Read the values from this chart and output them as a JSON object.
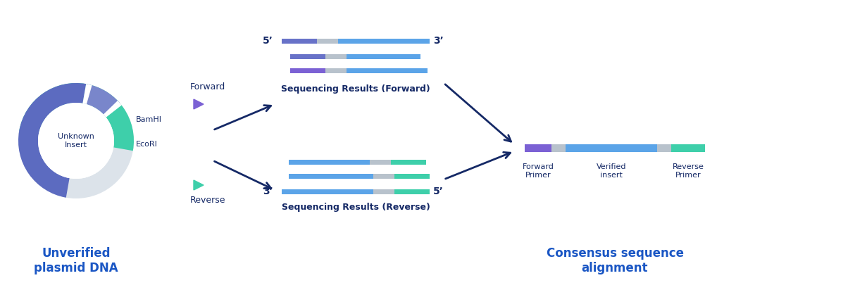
{
  "bg_color": "#ffffff",
  "dark_navy": "#152966",
  "mid_blue": "#6872c8",
  "light_blue": "#5ba4e8",
  "purple": "#7b61d4",
  "gray": "#b8c2cc",
  "teal": "#3ecfaa",
  "ring_outer_dark_blue": "#5c6bc0",
  "ring_outer_purple": "#7986cb",
  "ring_teal": "#3ecfaa",
  "ring_gray": "#dce3ea",
  "ring_white_gap": "#ffffff",
  "title_color": "#1a56c4",
  "label_color": "#152966",
  "five_prime": "5’",
  "three_prime": "3’",
  "forward_label": "Forward",
  "reverse_label": "Reverse",
  "bamhi_label": "BamHI",
  "ecori_label": "EcoRI",
  "unknown_insert": "Unknown\nInsert",
  "unverified_title": "Unverified\nplasmid DNA",
  "seq_fwd_title": "Sequencing Results (Forward)",
  "seq_rev_title": "Sequencing Results (Reverse)",
  "consensus_title": "Consensus sequence\nalignment",
  "fwd_primer_label": "Forward\nPrimer",
  "verified_insert_label": "Verified\ninsert",
  "rev_primer_label": "Reverse\nPrimer",
  "chevron_fwd_color": "#7b61d4",
  "chevron_rev_color": "#3ecfaa"
}
